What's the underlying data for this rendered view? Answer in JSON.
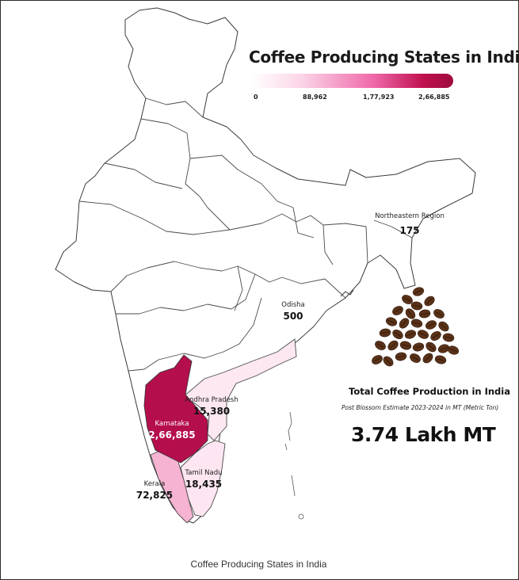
{
  "map": {
    "title": "Coffee Producing States in India",
    "caption": "Coffee Producing States in India",
    "legend": {
      "ticks": [
        "0",
        "88,962",
        "1,77,923",
        "2,66,885"
      ],
      "colors": {
        "low": "#ffffff",
        "mid": "#f06aaa",
        "high": "#9e0b3f"
      }
    },
    "regions": {
      "karnataka": {
        "name": "Karnataka",
        "value": "2,66,885",
        "color": "#b50e4d"
      },
      "kerala": {
        "name": "Kerala",
        "value": "72,825",
        "color": "#f6b3d2"
      },
      "tamil_nadu": {
        "name": "Tamil Nadu",
        "value": "18,435",
        "color": "#fde6f1"
      },
      "andhra_pradesh": {
        "name": "Andhra Pradesh",
        "value": "15,380",
        "color": "#fde8f2"
      },
      "odisha": {
        "name": "Odisha",
        "value": "500",
        "color": "#ffffff"
      },
      "northeast": {
        "name": "Northeastern Region",
        "value": "175",
        "color": "#ffffff"
      }
    },
    "summary": {
      "title": "Total Coffee Production in India",
      "subtitle": "Post Blossom Estimate 2023-2024 in MT (Metric Ton)",
      "value": "3.74 Lakh MT"
    }
  }
}
